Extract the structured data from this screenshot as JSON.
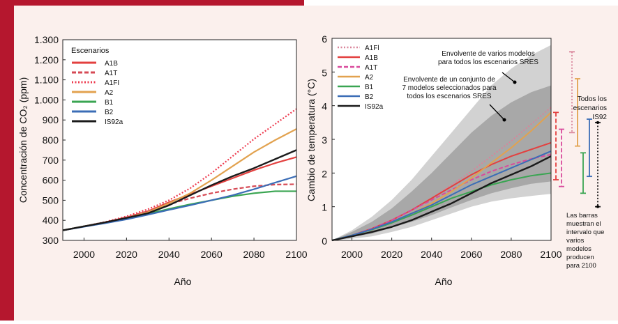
{
  "colors": {
    "frame": "#b5172e",
    "panel": "#fbf0ed",
    "A1B": "#e3403f",
    "A1T": "#d64a55",
    "A1FI": "#ee3b4f",
    "A2": "#e2a24f",
    "B1": "#3aa552",
    "B2": "#3b6db6",
    "IS92a": "#1a1a1a",
    "A1Fl_temp": "#d9849a",
    "A1T_temp": "#d94a9c",
    "envelope_outer": "#d2d2d2",
    "envelope_inner": "#a8a8a8"
  },
  "chart_data": [
    {
      "type": "line",
      "ylabel": "Concentración  de CO₂ (ppm)",
      "xlabel": "Año",
      "xlim": [
        1990,
        2100
      ],
      "ylim": [
        300,
        1300
      ],
      "xticks": [
        2000,
        2020,
        2040,
        2060,
        2080,
        2100
      ],
      "ytick_labels": [
        "300",
        "400",
        "500",
        "600",
        "700",
        "800",
        "900",
        "1.000",
        "1.100",
        "1.200",
        "1.300"
      ],
      "legend_title": "Escenarios",
      "legend_placement": "top-left",
      "x": [
        1990,
        2000,
        2010,
        2020,
        2030,
        2040,
        2050,
        2060,
        2070,
        2080,
        2090,
        2100
      ],
      "series": [
        {
          "name": "A1B",
          "style": "solid",
          "values": [
            350,
            370,
            390,
            415,
            445,
            490,
            530,
            570,
            610,
            650,
            685,
            715
          ]
        },
        {
          "name": "A1T",
          "style": "dashed",
          "values": [
            350,
            370,
            390,
            415,
            445,
            480,
            510,
            535,
            555,
            570,
            578,
            580
          ]
        },
        {
          "name": "A1FI",
          "style": "dotted",
          "values": [
            350,
            370,
            392,
            420,
            455,
            500,
            560,
            635,
            720,
            805,
            880,
            955
          ]
        },
        {
          "name": "A2",
          "style": "solid",
          "values": [
            350,
            370,
            390,
            412,
            440,
            485,
            535,
            600,
            670,
            740,
            800,
            855
          ]
        },
        {
          "name": "B1",
          "style": "solid",
          "values": [
            350,
            370,
            388,
            408,
            432,
            457,
            480,
            500,
            520,
            535,
            545,
            545
          ]
        },
        {
          "name": "B2",
          "style": "solid",
          "values": [
            350,
            368,
            386,
            405,
            428,
            452,
            475,
            500,
            525,
            555,
            588,
            620
          ]
        },
        {
          "name": "IS92a",
          "style": "solid",
          "values": [
            350,
            370,
            390,
            412,
            435,
            475,
            525,
            575,
            620,
            660,
            705,
            750
          ]
        }
      ]
    },
    {
      "type": "line",
      "ylabel": "Cambio de temperatura (°C)",
      "xlabel": "Año",
      "xlim": [
        1990,
        2100
      ],
      "ylim": [
        0,
        6
      ],
      "xticks": [
        2000,
        2020,
        2040,
        2060,
        2080,
        2100
      ],
      "yticks": [
        0,
        1,
        2,
        3,
        4,
        5,
        6
      ],
      "legend_placement": "top-left",
      "x": [
        1990,
        2000,
        2010,
        2020,
        2030,
        2040,
        2050,
        2060,
        2070,
        2080,
        2090,
        2100
      ],
      "series": [
        {
          "name": "A1Fl",
          "style": "dotted",
          "values": [
            0,
            0.15,
            0.35,
            0.6,
            0.9,
            1.25,
            1.65,
            2.05,
            2.5,
            2.95,
            3.45,
            3.95
          ]
        },
        {
          "name": "A1B",
          "style": "solid",
          "values": [
            0,
            0.15,
            0.35,
            0.6,
            0.9,
            1.25,
            1.6,
            1.95,
            2.25,
            2.5,
            2.7,
            2.9
          ]
        },
        {
          "name": "A1T",
          "style": "dashed",
          "values": [
            0,
            0.15,
            0.35,
            0.6,
            0.9,
            1.2,
            1.5,
            1.8,
            2.05,
            2.25,
            2.42,
            2.55
          ]
        },
        {
          "name": "A2",
          "style": "solid",
          "values": [
            0,
            0.15,
            0.32,
            0.55,
            0.8,
            1.1,
            1.45,
            1.85,
            2.3,
            2.75,
            3.25,
            3.8
          ]
        },
        {
          "name": "B1",
          "style": "solid",
          "values": [
            0,
            0.15,
            0.32,
            0.52,
            0.75,
            1.0,
            1.25,
            1.45,
            1.65,
            1.8,
            1.92,
            2.0
          ]
        },
        {
          "name": "B2",
          "style": "solid",
          "values": [
            0,
            0.15,
            0.33,
            0.55,
            0.8,
            1.05,
            1.35,
            1.65,
            1.9,
            2.15,
            2.4,
            2.65
          ]
        },
        {
          "name": "IS92a",
          "style": "solid",
          "values": [
            0,
            0.12,
            0.25,
            0.4,
            0.6,
            0.85,
            1.1,
            1.4,
            1.7,
            1.95,
            2.2,
            2.5
          ]
        }
      ],
      "envelopes": [
        {
          "name": "outer",
          "upper": [
            0,
            0.3,
            0.7,
            1.2,
            1.8,
            2.5,
            3.2,
            3.9,
            4.6,
            5.1,
            5.5,
            5.8
          ],
          "lower": [
            0,
            0.05,
            0.12,
            0.25,
            0.4,
            0.6,
            0.8,
            1.0,
            1.15,
            1.25,
            1.32,
            1.38
          ]
        },
        {
          "name": "inner",
          "upper": [
            0,
            0.25,
            0.55,
            0.95,
            1.45,
            2.0,
            2.6,
            3.2,
            3.7,
            4.1,
            4.4,
            4.6
          ],
          "lower": [
            0,
            0.1,
            0.2,
            0.38,
            0.55,
            0.75,
            0.98,
            1.2,
            1.4,
            1.55,
            1.68,
            1.75
          ]
        }
      ],
      "annotations": [
        {
          "id": "outer",
          "text": [
            "Envolvente de varios modelos",
            "para todos los escenarios SRES"
          ]
        },
        {
          "id": "inner",
          "text": [
            "Envolvente de un conjunto de",
            "7 modelos seleccionados para",
            "todos los escenarios SRES"
          ]
        },
        {
          "id": "is92",
          "text": [
            "Todos los",
            "escenarios",
            "IS92"
          ]
        },
        {
          "id": "bars",
          "text": [
            "Las barras",
            "muestran el",
            "intervalo que",
            "varios",
            "modelos",
            "producen",
            "para 2100"
          ]
        }
      ],
      "range_bars_2100": [
        {
          "name": "A1Fl",
          "style": "dotted",
          "low": 3.2,
          "high": 5.6
        },
        {
          "name": "A1B",
          "style": "dashed",
          "low": 1.8,
          "high": 3.8
        },
        {
          "name": "A1T",
          "style": "dashed",
          "low": 1.6,
          "high": 3.3
        },
        {
          "name": "A2",
          "style": "solid",
          "low": 2.8,
          "high": 4.8
        },
        {
          "name": "B1",
          "style": "solid",
          "low": 1.4,
          "high": 2.6
        },
        {
          "name": "B2",
          "style": "solid",
          "low": 1.9,
          "high": 3.6
        },
        {
          "name": "IS92a",
          "style": "dotted",
          "low": 1.0,
          "high": 3.5
        }
      ]
    }
  ]
}
